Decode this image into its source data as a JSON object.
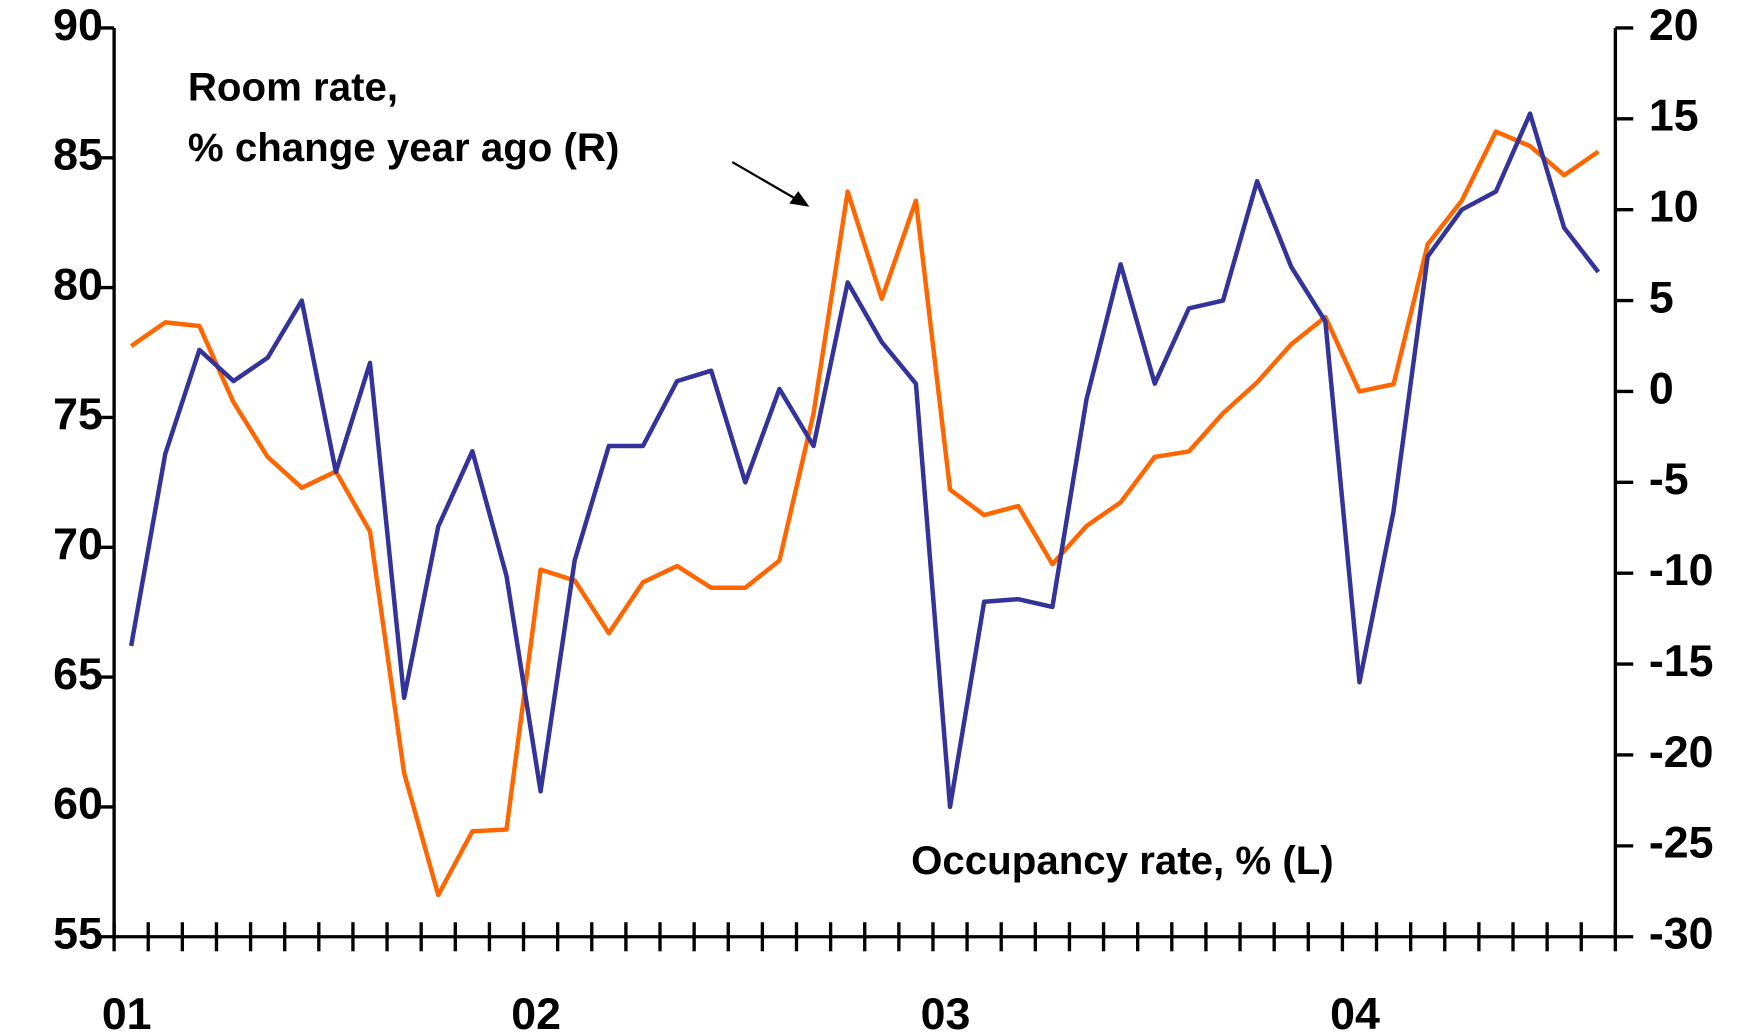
{
  "chart_data": {
    "type": "line",
    "categories": [
      "01",
      null,
      null,
      null,
      null,
      null,
      null,
      null,
      null,
      null,
      null,
      null,
      "02",
      null,
      null,
      null,
      null,
      null,
      null,
      null,
      null,
      null,
      null,
      null,
      "03",
      null,
      null,
      null,
      null,
      null,
      null,
      null,
      null,
      null,
      null,
      null,
      "04",
      null,
      null,
      null,
      null,
      null,
      null,
      null
    ],
    "series": [
      {
        "color": "#333399",
        "values": [
          66.2,
          73.6,
          77.6,
          76.4,
          77.3,
          79.5,
          72.9,
          77.1,
          64.2,
          70.8,
          73.7,
          68.9,
          60.6,
          69.5,
          73.9,
          73.9,
          76.4,
          76.8,
          72.5,
          76.1,
          73.9,
          80.2,
          77.9,
          76.3,
          60.0,
          67.9,
          68.0,
          67.7,
          75.7,
          80.9,
          76.3,
          79.2,
          79.5,
          84.1,
          80.8,
          78.7,
          64.8,
          71.4,
          81.2,
          83.0,
          83.7,
          86.7,
          82.3,
          80.6
        ]
      },
      {
        "color": "#ff6600",
        "axis": "y2",
        "values": [
          2.5,
          3.8,
          3.6,
          -0.6,
          -3.6,
          -5.3,
          -4.4,
          -7.7,
          -21.0,
          -27.7,
          -24.2,
          -24.1,
          -9.8,
          -10.4,
          -13.3,
          -10.5,
          -9.6,
          -10.8,
          -10.8,
          -9.3,
          -1.2,
          11.0,
          5.1,
          10.5,
          -5.4,
          -6.8,
          -6.3,
          -9.5,
          -7.4,
          -6.1,
          -3.6,
          -3.3,
          -1.2,
          0.5,
          2.6,
          4.1,
          0.0,
          0.4,
          8.1,
          10.5,
          14.3,
          13.5,
          11.9,
          13.2
        ]
      }
    ],
    "ylim": [
      55,
      90
    ],
    "yticks": [
      55,
      60,
      65,
      70,
      75,
      80,
      85,
      90
    ],
    "y2lim": [
      -30,
      20
    ],
    "y2ticks": [
      -30,
      -25,
      -20,
      -15,
      -10,
      -5,
      0,
      5,
      10,
      15,
      20
    ],
    "annotations": [
      "Room rate,",
      "% change year ago (R)",
      "Occupancy rate, % (L)"
    ]
  }
}
